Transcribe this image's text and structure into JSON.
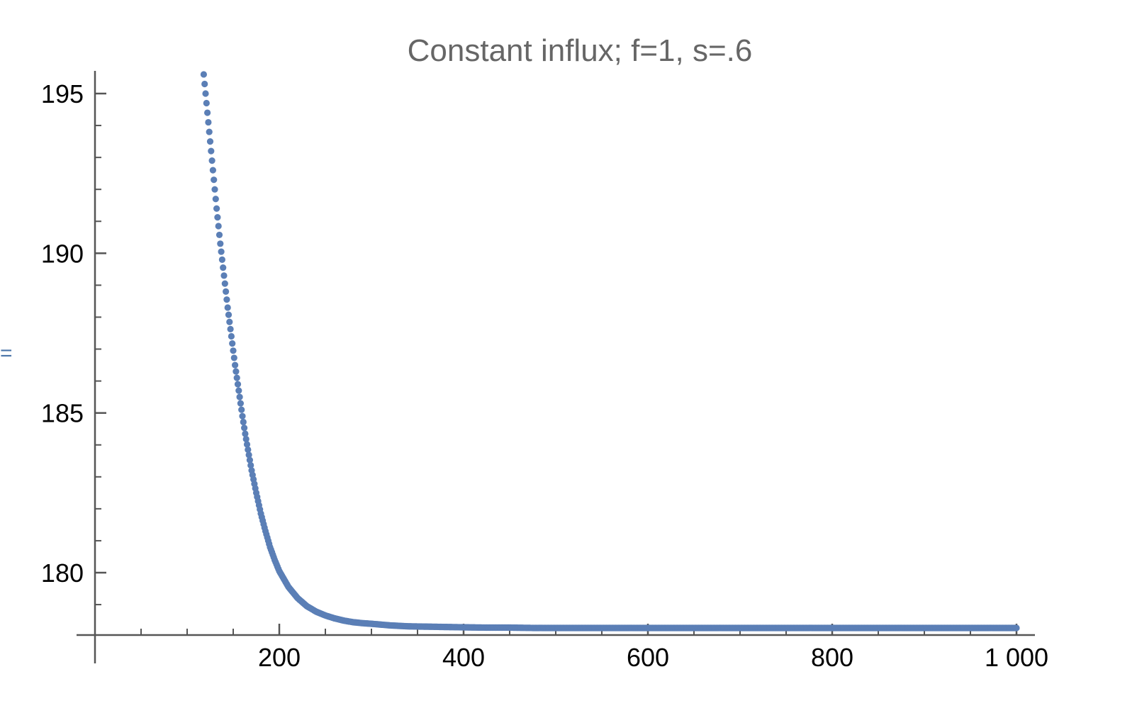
{
  "side_marker": "=",
  "chart_data": {
    "type": "scatter",
    "title": "Constant influx; f=1, s=.6",
    "xlabel": "",
    "ylabel": "",
    "xlim": [
      0,
      1010
    ],
    "ylim": [
      178.05,
      195.75
    ],
    "x_ticks": [
      200,
      400,
      600,
      800,
      1000
    ],
    "x_tick_labels": [
      "200",
      "400",
      "600",
      "800",
      "1 000"
    ],
    "x_minor_step": 50,
    "y_ticks": [
      180,
      185,
      190,
      195
    ],
    "y_tick_labels": [
      "180",
      "185",
      "190",
      "195"
    ],
    "y_minor_step": 1,
    "grid": false,
    "legend": "none",
    "colors": {
      "points": "#5b7fb6",
      "axes": "#555555",
      "title": "#666666",
      "tick_label": "#000000",
      "side_marker": "#4a74a8"
    },
    "series": [
      {
        "x": [
          118,
          119,
          120,
          121,
          122,
          123,
          124,
          125,
          126,
          127,
          128,
          129,
          130,
          132,
          134,
          136,
          138,
          140,
          142,
          144,
          146,
          148,
          150,
          152,
          154,
          156,
          158,
          160,
          163,
          166,
          170,
          175,
          180,
          185,
          190,
          195,
          200,
          210,
          220,
          230,
          240,
          250,
          260,
          270,
          280,
          290,
          300,
          320,
          340,
          360,
          380,
          400,
          425,
          450,
          475,
          500,
          550,
          600,
          650,
          700,
          750,
          800,
          850,
          900,
          950,
          1000
        ],
        "y": [
          195.6,
          195.3,
          195.0,
          194.7,
          194.4,
          194.1,
          193.8,
          193.5,
          193.2,
          192.9,
          192.6,
          192.3,
          192.0,
          191.4,
          190.85,
          190.3,
          189.8,
          189.3,
          188.8,
          188.3,
          187.85,
          187.4,
          186.95,
          186.5,
          186.1,
          185.7,
          185.3,
          184.9,
          184.35,
          183.85,
          183.2,
          182.5,
          181.85,
          181.3,
          180.8,
          180.4,
          180.05,
          179.55,
          179.2,
          178.95,
          178.78,
          178.66,
          178.57,
          178.5,
          178.45,
          178.42,
          178.4,
          178.35,
          178.32,
          178.31,
          178.3,
          178.29,
          178.28,
          178.28,
          178.27,
          178.27,
          178.27,
          178.27,
          178.27,
          178.27,
          178.27,
          178.27,
          178.27,
          178.27,
          178.27,
          178.27
        ]
      }
    ]
  }
}
